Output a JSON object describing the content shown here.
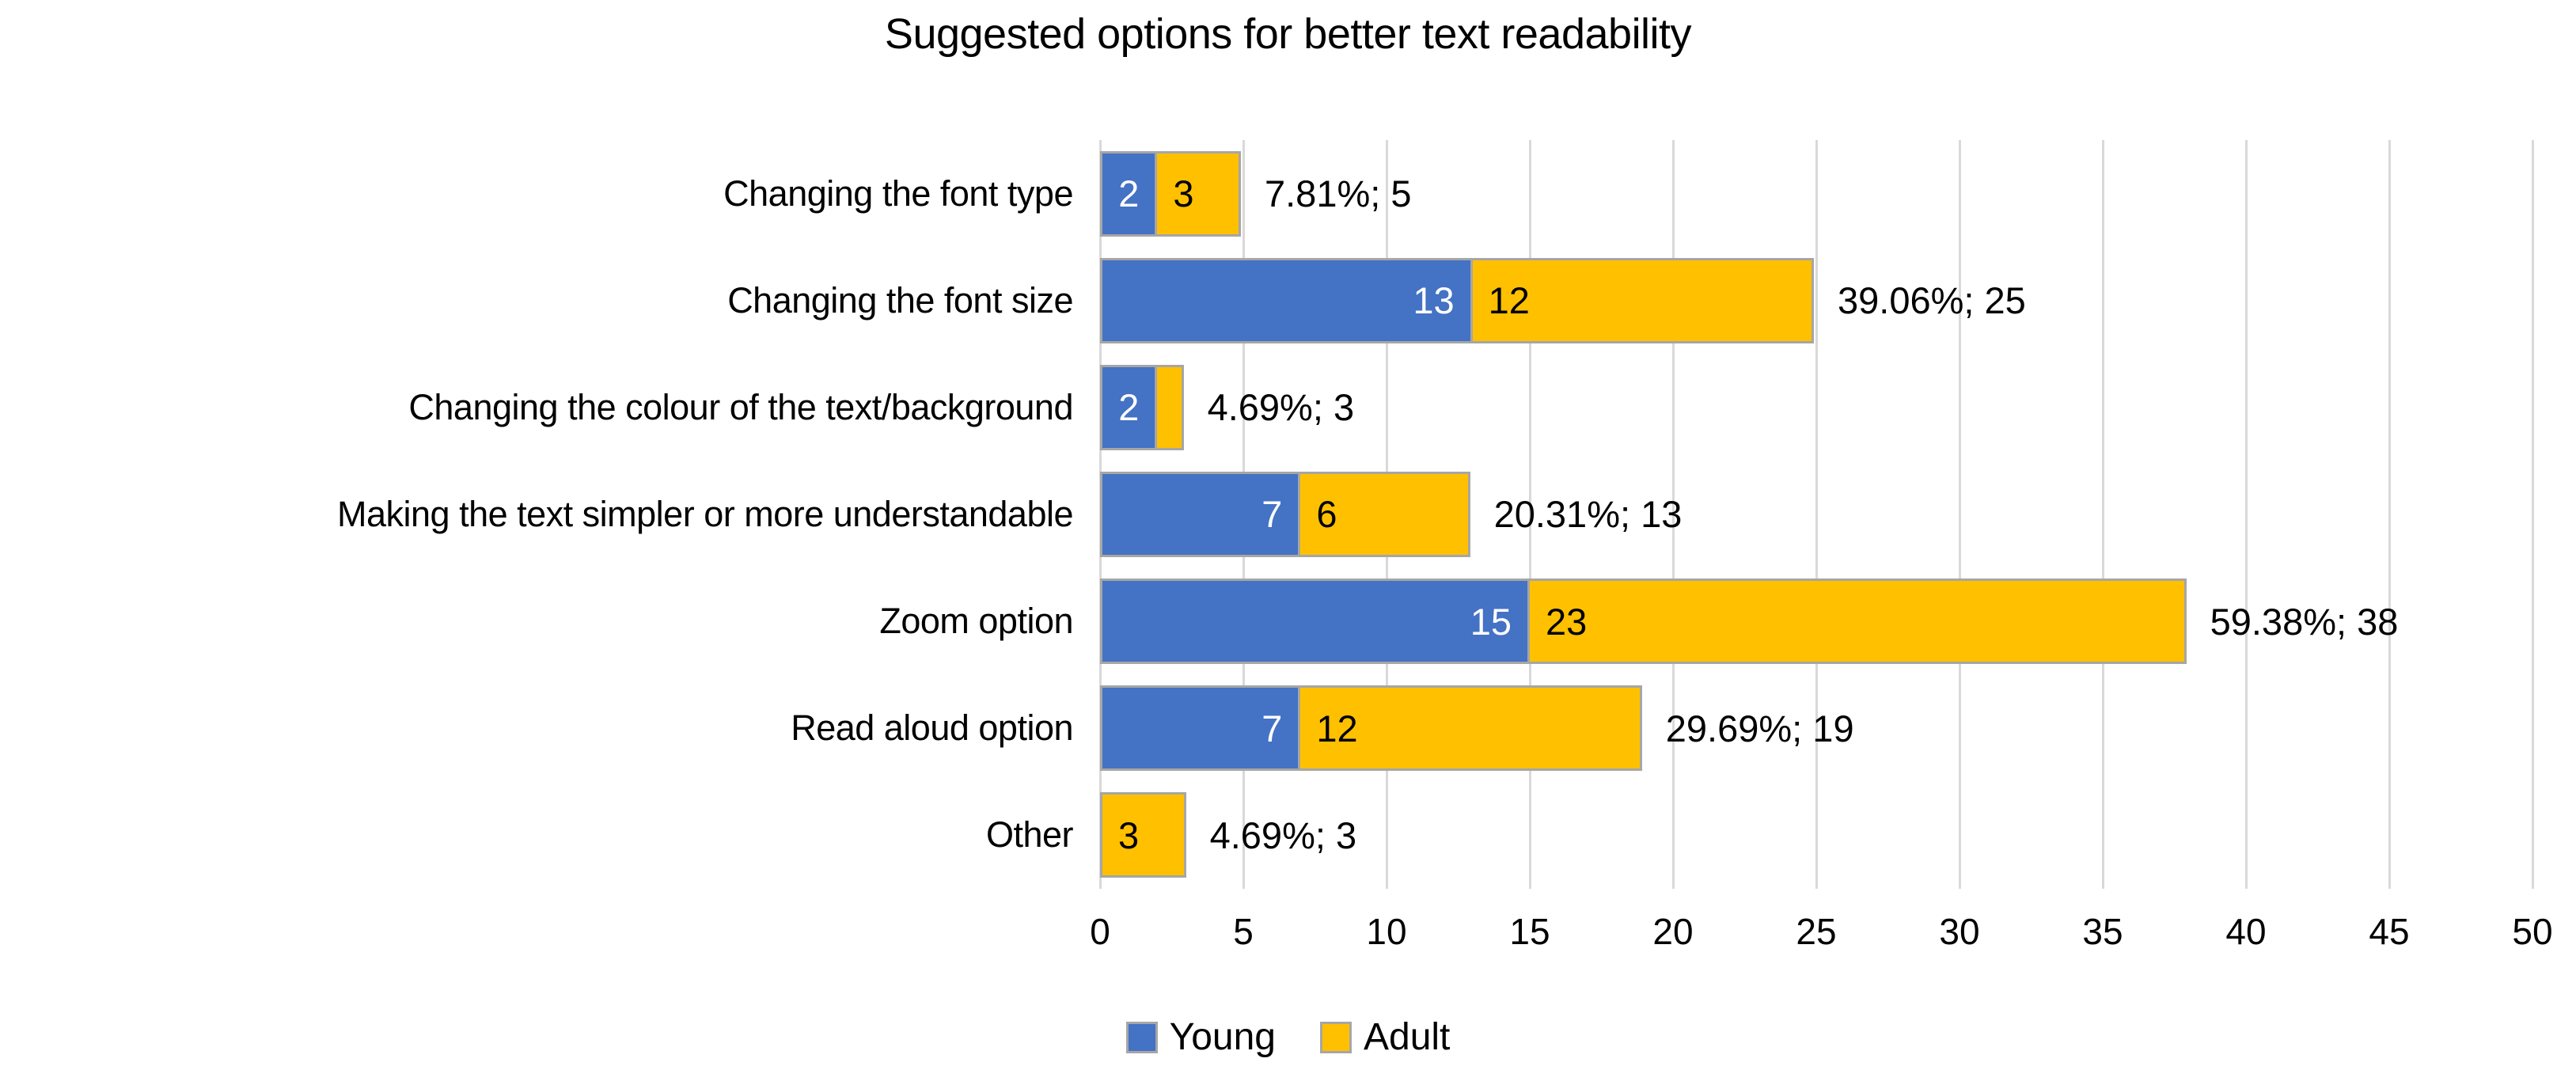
{
  "title": "Suggested options for better text readability",
  "colors": {
    "young": "#4472C4",
    "adult": "#FFC000",
    "bar_border": "#A6A6A6",
    "gridline": "#D9D9D9",
    "young_label_text": "#FFFFFF",
    "adult_label_text": "#000000",
    "text": "#000000",
    "background": "#FFFFFF"
  },
  "legend": {
    "position": "bottom",
    "items": [
      {
        "label": "Young",
        "series": "young"
      },
      {
        "label": "Adult",
        "series": "adult"
      }
    ]
  },
  "chart_data": {
    "type": "bar",
    "orientation": "horizontal",
    "stacked": true,
    "title": "Suggested options for better text readability",
    "categories": [
      "Changing the font type",
      "Changing the font size",
      "Changing the colour of the text/background",
      "Making the text simpler or more understandable",
      "Zoom option",
      "Read aloud option",
      "Other"
    ],
    "series": [
      {
        "name": "Young",
        "color": "#4472C4",
        "values": [
          2,
          13,
          2,
          7,
          15,
          7,
          0
        ],
        "data_labels": [
          "2",
          "13",
          "2",
          "7",
          "15",
          "7",
          ""
        ]
      },
      {
        "name": "Adult",
        "color": "#FFC000",
        "values": [
          3,
          12,
          1,
          6,
          23,
          12,
          3
        ],
        "data_labels": [
          "3",
          "12",
          "",
          "6",
          "23",
          "12",
          "3"
        ]
      }
    ],
    "totals": [
      5,
      25,
      3,
      13,
      38,
      19,
      3
    ],
    "total_labels": [
      "7.81%; 5",
      "39.06%; 25",
      "4.69%; 3",
      "20.31%; 13",
      "59.38%; 38",
      "29.69%; 19",
      "4.69%; 3"
    ],
    "xlim": [
      0,
      50
    ],
    "x_ticks": [
      "0",
      "5",
      "10",
      "15",
      "20",
      "25",
      "30",
      "35",
      "40",
      "45",
      "50"
    ],
    "grid": true,
    "legend_position": "bottom"
  }
}
